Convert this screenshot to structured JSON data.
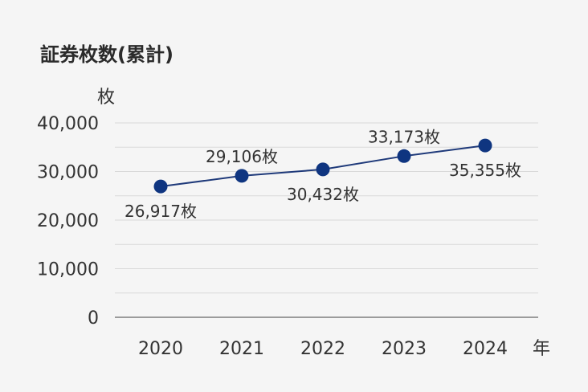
{
  "chart_data": {
    "type": "line",
    "title": "証券枚数(累計)",
    "ylabel": "枚",
    "xlabel": "年",
    "categories": [
      "2020",
      "2021",
      "2022",
      "2023",
      "2024"
    ],
    "values": [
      26917,
      29106,
      30432,
      33173,
      35355
    ],
    "data_labels": [
      "26,917枚",
      "29,106枚",
      "30,432枚",
      "33,173枚",
      "35,355枚"
    ],
    "y_ticks": [
      "40,000",
      "30,000",
      "20,000",
      "10,000",
      "0"
    ],
    "ylim": [
      0,
      40000
    ],
    "grid": true,
    "line_color": "#1f3a7a",
    "marker_color": "#0f3580"
  }
}
